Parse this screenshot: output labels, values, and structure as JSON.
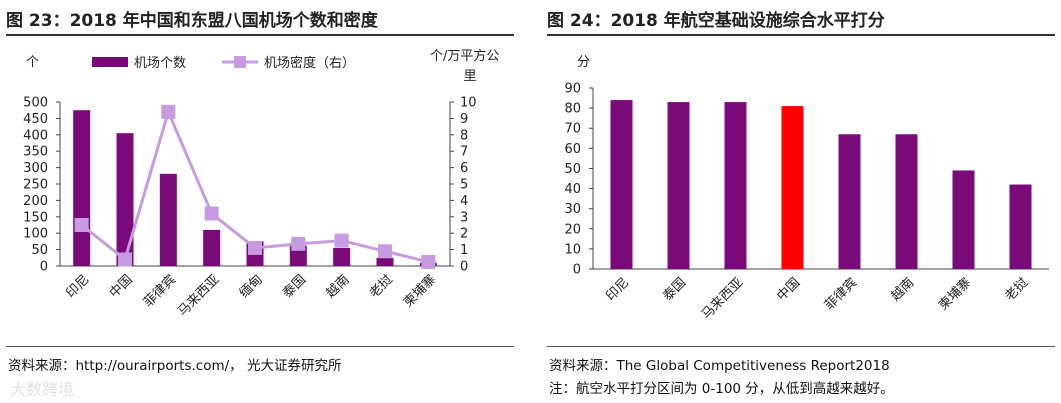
{
  "chart_data": [
    {
      "type": "bar+line",
      "title": "图 23：2018 年中国和东盟八国机场个数和密度",
      "categories": [
        "印尼",
        "中国",
        "菲律宾",
        "马来西亚",
        "缅甸",
        "泰国",
        "越南",
        "老挝",
        "柬埔寨"
      ],
      "series": [
        {
          "name": "机场个数",
          "type": "bar",
          "axis": "left",
          "color": "#7a0a7a",
          "values": [
            475,
            405,
            281,
            110,
            75,
            62,
            55,
            25,
            10
          ]
        },
        {
          "name": "机场密度（右）",
          "type": "line",
          "axis": "right",
          "color": "#c79be0",
          "values": [
            2.5,
            0.4,
            9.4,
            3.2,
            1.1,
            1.35,
            1.55,
            0.9,
            0.25
          ]
        }
      ],
      "ylabel_left": "个",
      "ylabel_right": "个/万平方公里",
      "ylim_left": [
        0,
        500
      ],
      "ylim_right": [
        0,
        10
      ],
      "yticks_left": [
        "0",
        "50",
        "100",
        "150",
        "200",
        "250",
        "300",
        "350",
        "400",
        "450",
        "500"
      ],
      "yticks_right": [
        "0",
        "1",
        "2",
        "3",
        "4",
        "5",
        "6",
        "7",
        "8",
        "9",
        "10"
      ],
      "legend": [
        "机场个数",
        "机场密度（右）"
      ],
      "source": "资料来源：http://ourairports.com/， 光大证券研究所"
    },
    {
      "type": "bar",
      "title": "图 24：2018 年航空基础设施综合水平打分",
      "categories": [
        "印尼",
        "泰国",
        "马来西亚",
        "中国",
        "菲律宾",
        "越南",
        "柬埔寨",
        "老挝"
      ],
      "values": [
        84,
        83,
        83,
        81,
        67,
        67,
        49,
        42
      ],
      "colors": [
        "#7a0a7a",
        "#7a0a7a",
        "#7a0a7a",
        "#ff0000",
        "#7a0a7a",
        "#7a0a7a",
        "#7a0a7a",
        "#7a0a7a"
      ],
      "ylabel": "分",
      "ylim": [
        0,
        90
      ],
      "yticks": [
        "0",
        "10",
        "20",
        "30",
        "40",
        "50",
        "60",
        "70",
        "80",
        "90"
      ],
      "source": "资料来源：The Global Competitiveness Report2018",
      "note": "注：航空水平打分区间为 0-100 分，从低到高越来越好。"
    }
  ],
  "watermark": "大数跨境"
}
